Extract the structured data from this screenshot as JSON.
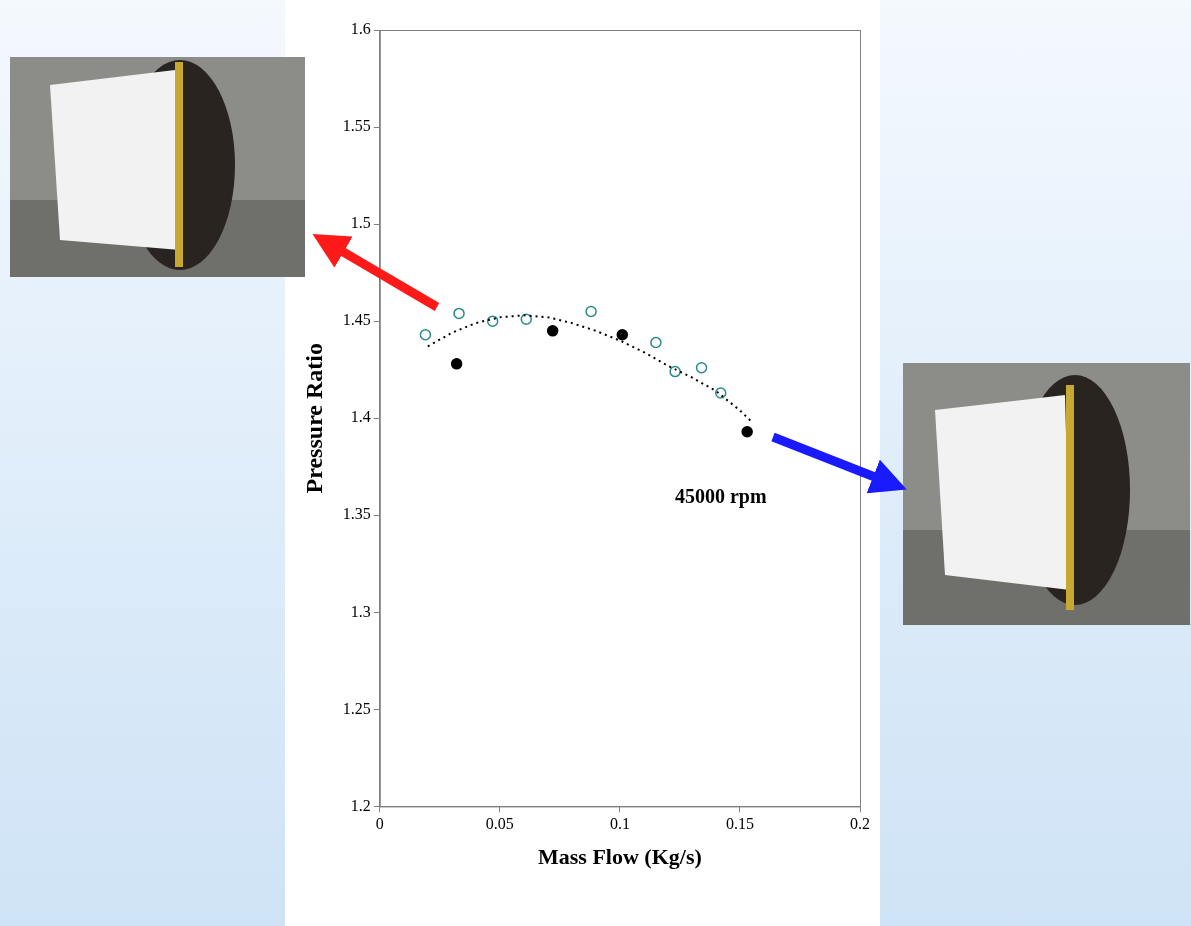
{
  "chart_data": {
    "type": "scatter",
    "x_label": "Mass Flow (Kg/s)",
    "y_label": "Pressure Ratio",
    "xlim": [
      0,
      0.2
    ],
    "xticks": [
      0,
      0.05,
      0.1,
      0.15,
      0.2
    ],
    "ylim": [
      1.2,
      1.6
    ],
    "yticks": [
      1.2,
      1.25,
      1.3,
      1.35,
      1.4,
      1.45,
      1.5,
      1.55,
      1.6
    ],
    "grid": false,
    "annotations": [
      {
        "text": "45000 rpm",
        "x": 0.142,
        "y": 1.359
      }
    ],
    "series": [
      {
        "type": "line",
        "color": "#000000",
        "marker": "none",
        "line_style": "dotted",
        "x": [
          0.02,
          0.03,
          0.04,
          0.05,
          0.06,
          0.07,
          0.08,
          0.09,
          0.1,
          0.11,
          0.12,
          0.13,
          0.14,
          0.15,
          0.155
        ],
        "values": [
          1.437,
          1.444,
          1.449,
          1.452,
          1.453,
          1.452,
          1.449,
          1.445,
          1.44,
          1.434,
          1.427,
          1.421,
          1.414,
          1.404,
          1.398
        ]
      },
      {
        "type": "scatter",
        "color": "#2a8a8a",
        "marker": "circle_open",
        "x": [
          0.019,
          0.033,
          0.047,
          0.061,
          0.088,
          0.115,
          0.123,
          0.134,
          0.142
        ],
        "values": [
          1.443,
          1.454,
          1.45,
          1.451,
          1.455,
          1.439,
          1.424,
          1.426,
          1.413
        ]
      },
      {
        "type": "scatter",
        "color": "#000000",
        "marker": "circle",
        "x": [
          0.032,
          0.072,
          0.101,
          0.153
        ],
        "values": [
          1.428,
          1.445,
          1.443,
          1.393
        ]
      }
    ]
  }
}
